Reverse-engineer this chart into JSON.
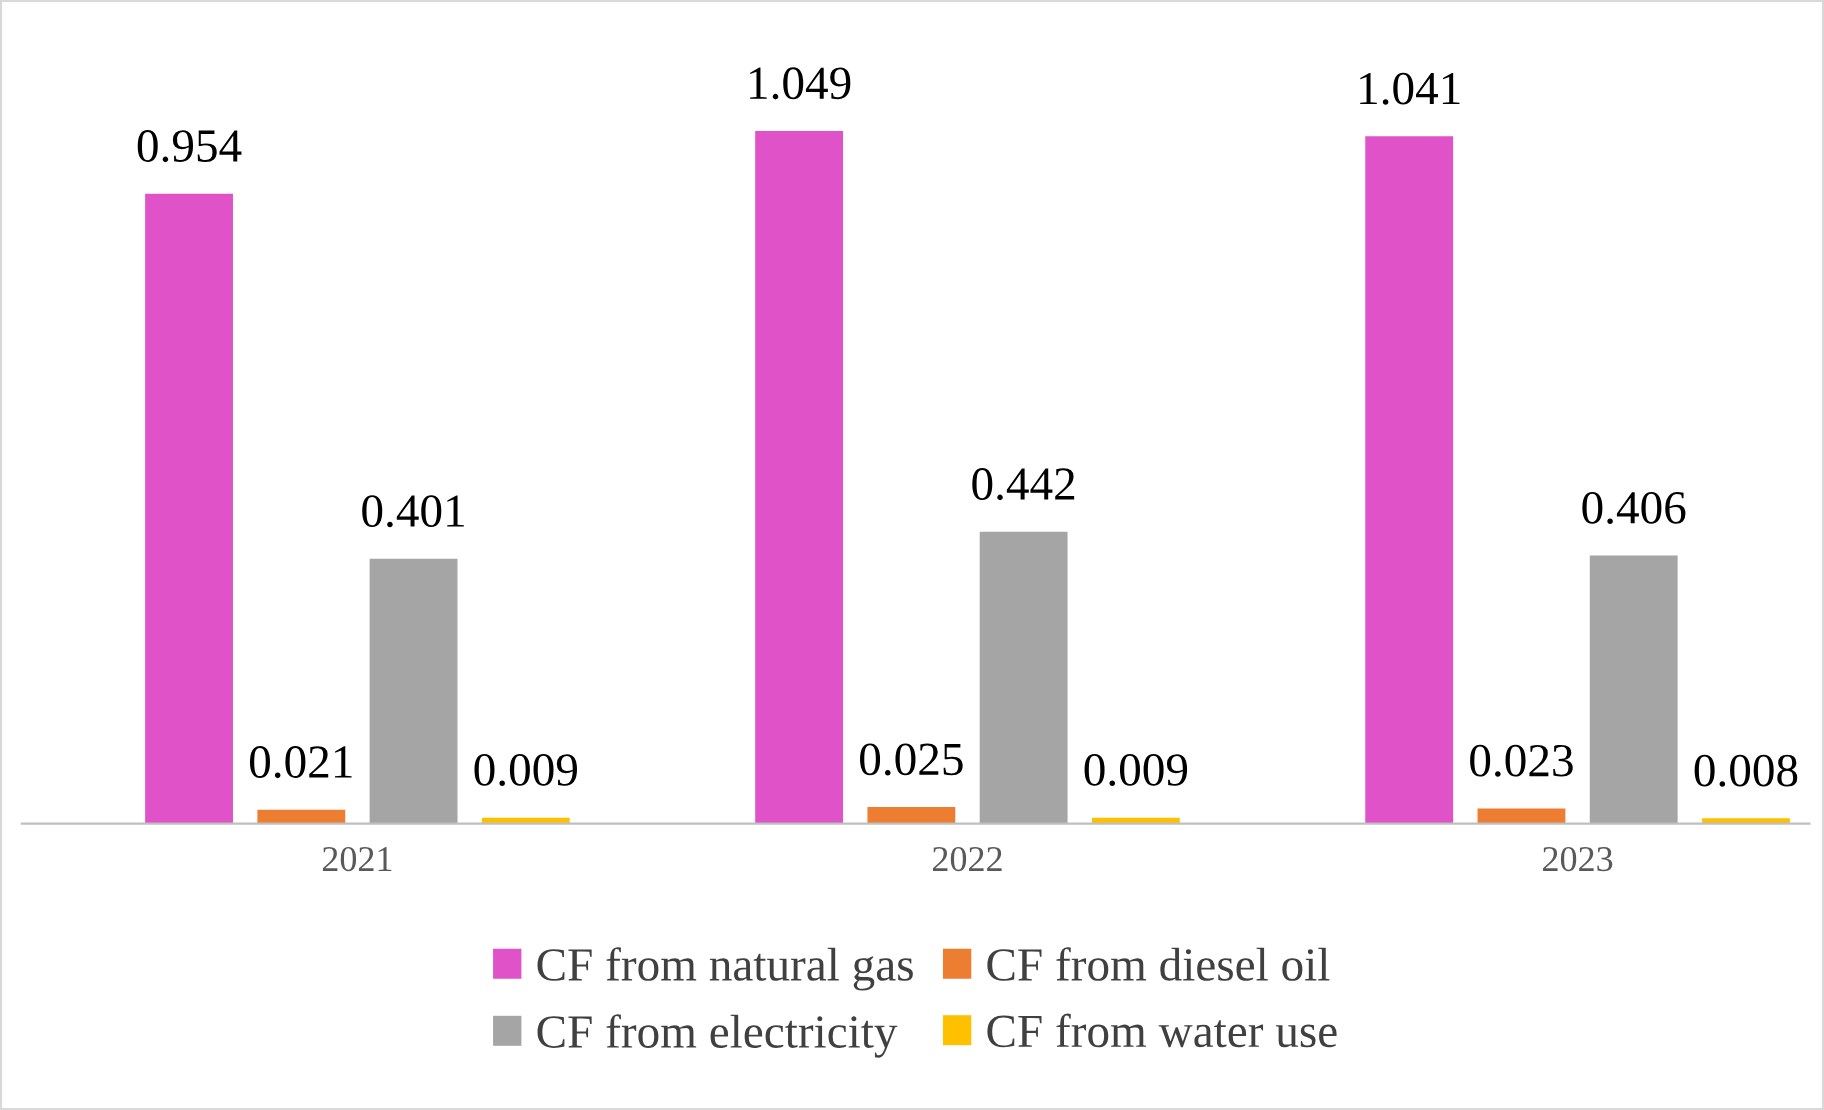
{
  "chart_data": {
    "type": "bar",
    "categories": [
      "2021",
      "2022",
      "2023"
    ],
    "series": [
      {
        "name": "CF from natural gas",
        "color": "#e052c8",
        "values": [
          0.954,
          1.049,
          1.041
        ]
      },
      {
        "name": "CF from diesel oil",
        "color": "#ed7d31",
        "values": [
          0.021,
          0.025,
          0.023
        ]
      },
      {
        "name": "CF from electricity",
        "color": "#a5a5a5",
        "values": [
          0.401,
          0.442,
          0.406
        ]
      },
      {
        "name": "CF from water use",
        "color": "#ffc000",
        "values": [
          0.009,
          0.009,
          0.008
        ]
      }
    ],
    "data_labels": true,
    "legend": "bottom",
    "grid": false
  }
}
